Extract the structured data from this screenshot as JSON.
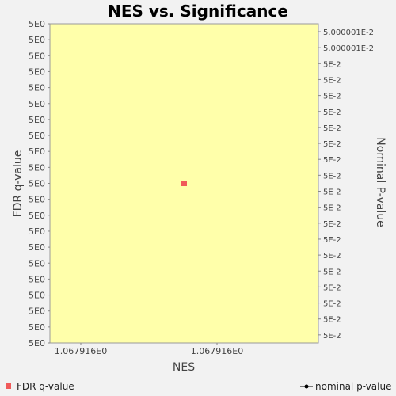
{
  "chart_data": {
    "type": "scatter",
    "title": "NES vs. Significance",
    "xlabel": "NES",
    "ylabel_left": "FDR q-value",
    "ylabel_right": "Nominal P-value",
    "x_tick_labels": [
      "1.067916E0",
      "1.067916E0"
    ],
    "y_left_tick_labels": [
      "5E0",
      "5E0",
      "5E0",
      "5E0",
      "5E0",
      "5E0",
      "5E0",
      "5E0",
      "5E0",
      "5E0",
      "5E0",
      "5E0",
      "5E0",
      "5E0",
      "5E0",
      "5E0",
      "5E0",
      "5E0",
      "5E0",
      "5E0",
      "5E0"
    ],
    "y_right_tick_labels": [
      "5.000001E-2",
      "5.000001E-2",
      "5E-2",
      "5E-2",
      "5E-2",
      "5E-2",
      "5E-2",
      "5E-2",
      "5E-2",
      "5E-2",
      "5E-2",
      "5E-2",
      "5E-2",
      "5E-2",
      "5E-2",
      "5E-2",
      "5E-2",
      "5E-2",
      "5E-2",
      "5E-2"
    ],
    "series": [
      {
        "name": "FDR q-value",
        "color": "#f05a5a",
        "marker": "square",
        "points": [
          {
            "x": 1.067916,
            "y": 5
          }
        ]
      },
      {
        "name": "nominal p-value",
        "color": "#000000",
        "marker": "circle-line",
        "points": []
      }
    ],
    "plot_background": "#ffffaa",
    "legend_placement": "bottom"
  }
}
